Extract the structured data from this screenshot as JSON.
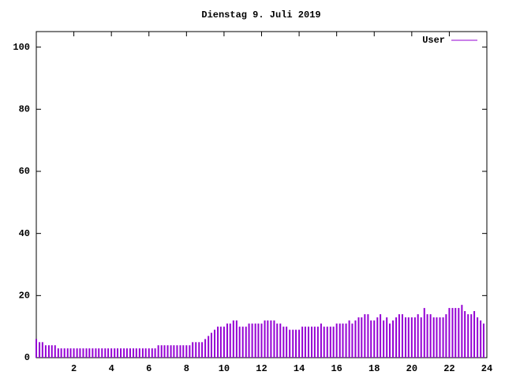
{
  "chart_data": {
    "type": "impulse",
    "title": "Dienstag 9. Juli 2019",
    "xlim": [
      0,
      24
    ],
    "xticks": [
      2,
      4,
      6,
      8,
      10,
      12,
      14,
      16,
      18,
      20,
      22,
      24
    ],
    "ylim": [
      0,
      105
    ],
    "yticks": [
      0,
      20,
      40,
      60,
      80,
      100
    ],
    "legend": "top-right",
    "x": [
      0,
      0.17,
      0.33,
      0.5,
      0.67,
      0.83,
      1,
      1.17,
      1.33,
      1.5,
      1.67,
      1.83,
      2,
      2.17,
      2.33,
      2.5,
      2.67,
      2.83,
      3,
      3.17,
      3.33,
      3.5,
      3.67,
      3.83,
      4,
      4.17,
      4.33,
      4.5,
      4.67,
      4.83,
      5,
      5.17,
      5.33,
      5.5,
      5.67,
      5.83,
      6,
      6.17,
      6.33,
      6.5,
      6.67,
      6.83,
      7,
      7.17,
      7.33,
      7.5,
      7.67,
      7.83,
      8,
      8.17,
      8.33,
      8.5,
      8.67,
      8.83,
      9,
      9.17,
      9.33,
      9.5,
      9.67,
      9.83,
      10,
      10.17,
      10.33,
      10.5,
      10.67,
      10.83,
      11,
      11.17,
      11.33,
      11.5,
      11.67,
      11.83,
      12,
      12.17,
      12.33,
      12.5,
      12.67,
      12.83,
      13,
      13.17,
      13.33,
      13.5,
      13.67,
      13.83,
      14,
      14.17,
      14.33,
      14.5,
      14.67,
      14.83,
      15,
      15.17,
      15.33,
      15.5,
      15.67,
      15.83,
      16,
      16.17,
      16.33,
      16.5,
      16.67,
      16.83,
      17,
      17.17,
      17.33,
      17.5,
      17.67,
      17.83,
      18,
      18.17,
      18.33,
      18.5,
      18.67,
      18.83,
      19,
      19.17,
      19.33,
      19.5,
      19.67,
      19.83,
      20,
      20.17,
      20.33,
      20.5,
      20.67,
      20.83,
      21,
      21.17,
      21.33,
      21.5,
      21.67,
      21.83,
      22,
      22.17,
      22.33,
      22.5,
      22.67,
      22.83,
      23,
      23.17,
      23.33,
      23.5,
      23.67,
      23.83
    ],
    "series": [
      {
        "name": "User",
        "color": "#9400d3",
        "values": [
          6,
          5,
          5,
          4,
          4,
          4,
          4,
          3,
          3,
          3,
          3,
          3,
          3,
          3,
          3,
          3,
          3,
          3,
          3,
          3,
          3,
          3,
          3,
          3,
          3,
          3,
          3,
          3,
          3,
          3,
          3,
          3,
          3,
          3,
          3,
          3,
          3,
          3,
          3,
          4,
          4,
          4,
          4,
          4,
          4,
          4,
          4,
          4,
          4,
          4,
          5,
          5,
          5,
          5,
          6,
          7,
          8,
          9,
          10,
          10,
          10,
          11,
          11,
          12,
          12,
          10,
          10,
          10,
          11,
          11,
          11,
          11,
          11,
          12,
          12,
          12,
          12,
          11,
          11,
          10,
          10,
          9,
          9,
          9,
          9,
          10,
          10,
          10,
          10,
          10,
          10,
          11,
          10,
          10,
          10,
          10,
          11,
          11,
          11,
          11,
          12,
          11,
          12,
          13,
          13,
          14,
          14,
          12,
          12,
          13,
          14,
          12,
          13,
          11,
          12,
          13,
          14,
          14,
          13,
          13,
          13,
          13,
          14,
          13,
          16,
          14,
          14,
          13,
          13,
          13,
          13,
          14,
          16,
          16,
          16,
          16,
          17,
          15,
          14,
          14,
          15,
          13,
          12,
          11
        ]
      }
    ]
  }
}
